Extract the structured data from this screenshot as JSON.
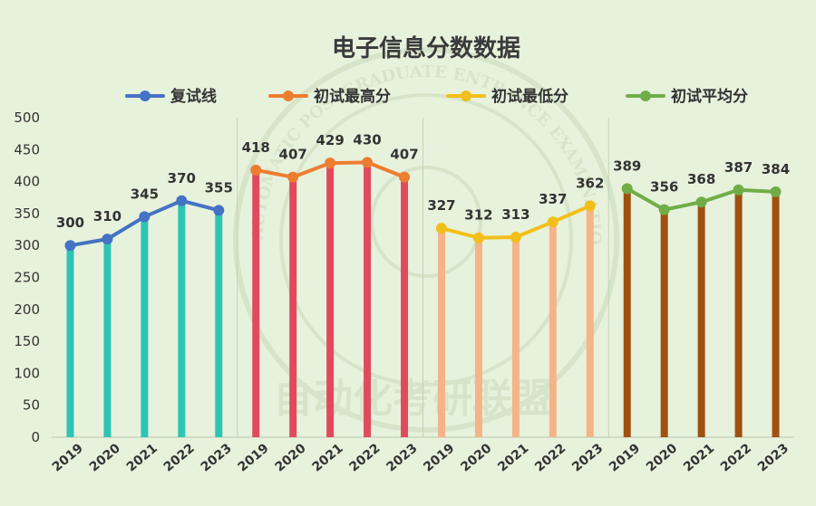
{
  "chart_data": {
    "type": "bar+line",
    "title": "电子信息分数数据",
    "ylim": [
      0,
      500
    ],
    "yticks": [
      0,
      50,
      100,
      150,
      200,
      250,
      300,
      350,
      400,
      450,
      500
    ],
    "grid": false,
    "legend_position": "top",
    "groups": [
      {
        "name": "复试线",
        "years": [
          "2019",
          "2020",
          "2021",
          "2022",
          "2023"
        ],
        "values": [
          300,
          310,
          345,
          370,
          355
        ],
        "line_color": "#4472c4",
        "bar_color": "#2ec4b6"
      },
      {
        "name": "初试最高分",
        "years": [
          "2019",
          "2020",
          "2021",
          "2022",
          "2023"
        ],
        "values": [
          418,
          407,
          429,
          430,
          407
        ],
        "line_color": "#ed7d31",
        "bar_color": "#e04a5f"
      },
      {
        "name": "初试最低分",
        "years": [
          "2019",
          "2020",
          "2021",
          "2022",
          "2023"
        ],
        "values": [
          327,
          312,
          313,
          337,
          362
        ],
        "line_color": "#f2bf1a",
        "bar_color": "#f5b488"
      },
      {
        "name": "初试平均分",
        "years": [
          "2019",
          "2020",
          "2021",
          "2022",
          "2023"
        ],
        "values": [
          389,
          356,
          368,
          387,
          384
        ],
        "line_color": "#70ad47",
        "bar_color": "#a0500f"
      }
    ]
  },
  "watermark": {
    "text": "自动化考研联盟",
    "ring_text": "AUTOMATIC POSTGRADUATE ENTRANCE EXAMINATION ALLIANCE"
  }
}
